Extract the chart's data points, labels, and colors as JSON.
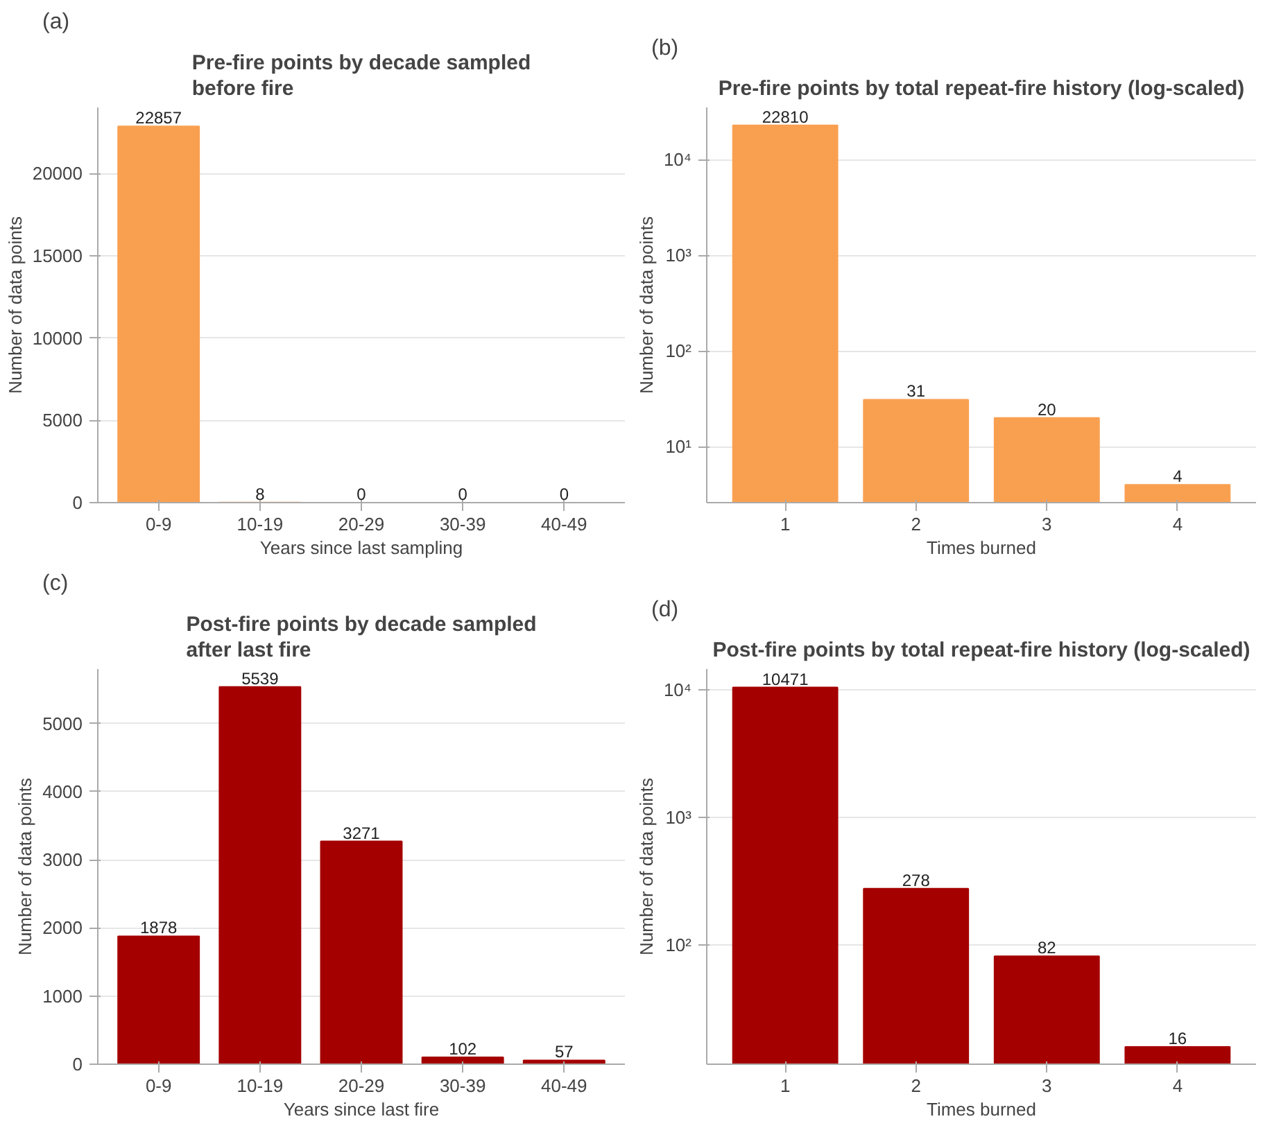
{
  "chart_data": [
    {
      "type": "bar",
      "annotations": [
        "(a)"
      ],
      "title": "Pre-fire points by decade sampled\nbefore fire",
      "xlabel": "Years since last sampling",
      "ylabel": "Number of data points",
      "categories": [
        "0-9",
        "10-19",
        "20-29",
        "30-39",
        "40-49"
      ],
      "values": [
        22857,
        8,
        0,
        0,
        0
      ],
      "color": "#f9a050",
      "ylim": [
        0,
        24000
      ],
      "yticks": [
        0,
        5000,
        10000,
        15000,
        20000
      ],
      "grid": "y",
      "data_labels": true
    },
    {
      "type": "bar",
      "annotations": [
        "(b)"
      ],
      "title": "Pre-fire points by total repeat-fire history (log-scaled)",
      "xlabel": "Times burned",
      "ylabel": "Number of data points",
      "categories": [
        "1",
        "2",
        "3",
        "4"
      ],
      "values": [
        22810,
        31,
        20,
        4
      ],
      "color": "#f9a050",
      "log": "y",
      "ylim": [
        2.6,
        35000
      ],
      "yticks": [
        {
          "value": 10,
          "label": "10¹"
        },
        {
          "value": 100,
          "label": "10²"
        },
        {
          "value": 1000,
          "label": "10³"
        },
        {
          "value": 10000,
          "label": "10⁴"
        }
      ],
      "grid": "y",
      "data_labels": true
    },
    {
      "type": "bar",
      "annotations": [
        "(c)"
      ],
      "title": "Post-fire points by decade sampled\nafter last fire",
      "xlabel": "Years since last fire",
      "ylabel": "Number of data points",
      "categories": [
        "0-9",
        "10-19",
        "20-29",
        "30-39",
        "40-49"
      ],
      "values": [
        1878,
        5539,
        3271,
        102,
        57
      ],
      "color": "#a50000",
      "ylim": [
        0,
        5800
      ],
      "yticks": [
        0,
        1000,
        2000,
        3000,
        4000,
        5000
      ],
      "grid": "y",
      "data_labels": true
    },
    {
      "type": "bar",
      "annotations": [
        "(d)"
      ],
      "title": "Post-fire points by total repeat-fire history (log-scaled)",
      "xlabel": "Times burned",
      "ylabel": "Number of data points",
      "categories": [
        "1",
        "2",
        "3",
        "4"
      ],
      "values": [
        10471,
        278,
        82,
        16
      ],
      "color": "#a50000",
      "log": "y",
      "ylim": [
        11.7,
        14600
      ],
      "yticks": [
        {
          "value": 100,
          "label": "10²"
        },
        {
          "value": 1000,
          "label": "10³"
        },
        {
          "value": 10000,
          "label": "10⁴"
        }
      ],
      "grid": "y",
      "data_labels": true
    }
  ]
}
